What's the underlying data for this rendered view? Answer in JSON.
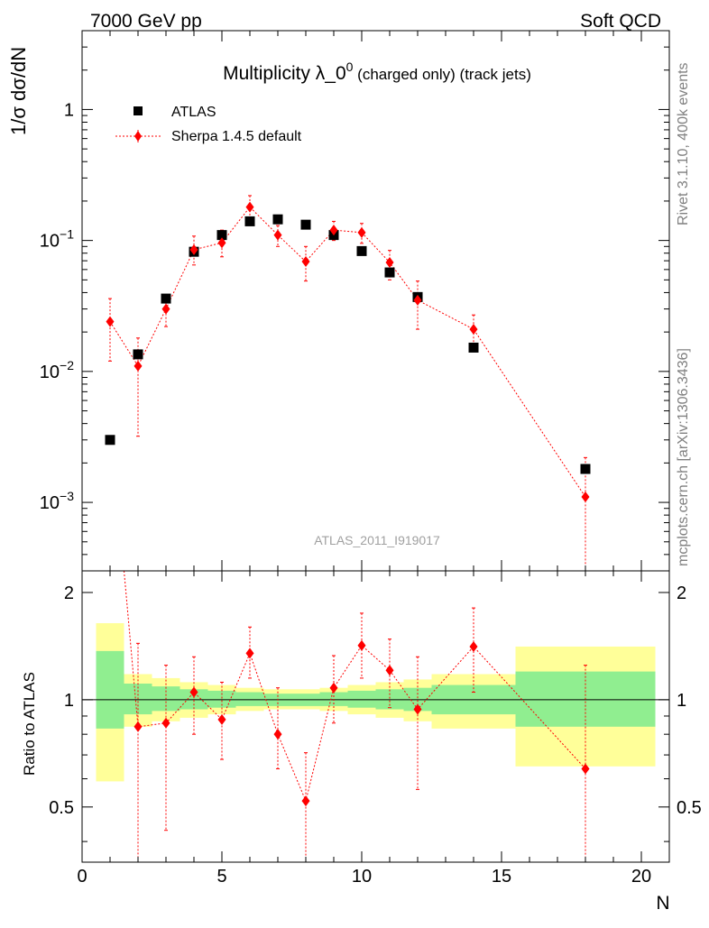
{
  "header": {
    "left": "7000 GeV pp",
    "right": "Soft QCD"
  },
  "side_labels": {
    "rivet": "Rivet 3.1.10,  400k events",
    "mcplots": "mcplots.cern.ch [arXiv:1306.3436]"
  },
  "chart_data": {
    "type": "scatter",
    "title_main": "Multiplicity λ_0",
    "title_sup": "0",
    "title_suffix": " (charged only) (track jets)",
    "ylabel": "1/σ dσ/dN",
    "ylabel_ratio": "Ratio to ATLAS",
    "xlabel": "N",
    "analysis_id": "ATLAS_2011_I919017",
    "xlim": [
      0,
      21
    ],
    "ylim_log": [
      0.0003,
      4
    ],
    "ratio_ylim": [
      0.35,
      2.3
    ],
    "y_ticks": [
      {
        "value": 1,
        "label": "1"
      },
      {
        "value": 0.1,
        "label": "10",
        "exp": "−1"
      },
      {
        "value": 0.01,
        "label": "10",
        "exp": "−2"
      },
      {
        "value": 0.001,
        "label": "10",
        "exp": "−3"
      }
    ],
    "ratio_ticks": [
      {
        "value": 0.5,
        "label": "0.5"
      },
      {
        "value": 1,
        "label": "1"
      },
      {
        "value": 2,
        "label": "2"
      }
    ],
    "x_ticks": [
      0,
      5,
      10,
      15,
      20
    ],
    "legend": [
      {
        "name": "ATLAS",
        "marker": "square",
        "color": "#000000"
      },
      {
        "name": "Sherpa 1.4.5 default",
        "marker": "diamond",
        "color": "#ff0000"
      }
    ],
    "atlas": {
      "name": "ATLAS",
      "x": [
        1,
        2,
        3,
        4,
        5,
        6,
        7,
        8,
        9,
        10,
        11,
        12,
        14,
        18
      ],
      "y": [
        0.003,
        0.0135,
        0.036,
        0.082,
        0.11,
        0.14,
        0.145,
        0.132,
        0.11,
        0.083,
        0.057,
        0.037,
        0.0152,
        0.0018
      ]
    },
    "sherpa": {
      "name": "Sherpa 1.4.5 default",
      "x": [
        1,
        2,
        3,
        4,
        5,
        6,
        7,
        8,
        9,
        10,
        11,
        12,
        14,
        18
      ],
      "y": [
        0.024,
        0.011,
        0.03,
        0.085,
        0.096,
        0.18,
        0.11,
        0.069,
        0.12,
        0.115,
        0.068,
        0.035,
        0.021,
        0.0011
      ],
      "y_lo": [
        0.012,
        0.0032,
        0.022,
        0.065,
        0.075,
        0.15,
        0.09,
        0.049,
        0.1,
        0.095,
        0.05,
        0.021,
        0.015,
        0.0002
      ],
      "y_hi": [
        0.036,
        0.018,
        0.038,
        0.108,
        0.12,
        0.22,
        0.13,
        0.09,
        0.14,
        0.135,
        0.084,
        0.049,
        0.027,
        0.0022
      ]
    },
    "ratio": {
      "x": [
        2,
        3,
        4,
        5,
        6,
        7,
        8,
        9,
        10,
        11,
        12,
        14,
        18
      ],
      "y": [
        0.84,
        0.86,
        1.05,
        0.88,
        1.35,
        0.8,
        0.52,
        1.08,
        1.42,
        1.21,
        0.94,
        1.41,
        0.64
      ],
      "y_lo": [
        0.3,
        0.43,
        0.8,
        0.68,
        1.15,
        0.64,
        0.35,
        0.86,
        1.15,
        0.95,
        0.56,
        1.05,
        0.3
      ],
      "y_hi": [
        1.44,
        1.25,
        1.32,
        1.12,
        1.6,
        1.08,
        0.71,
        1.33,
        1.75,
        1.48,
        1.32,
        1.81,
        1.25
      ],
      "first_y_hi": 2.3
    },
    "uncertainty_bands": [
      {
        "x0": 0.5,
        "x1": 1.5,
        "inner": [
          0.83,
          1.37
        ],
        "outer": [
          0.59,
          1.64
        ]
      },
      {
        "x0": 1.5,
        "x1": 2.5,
        "inner": [
          0.91,
          1.11
        ],
        "outer": [
          0.84,
          1.18
        ]
      },
      {
        "x0": 2.5,
        "x1": 3.5,
        "inner": [
          0.93,
          1.09
        ],
        "outer": [
          0.87,
          1.15
        ]
      },
      {
        "x0": 3.5,
        "x1": 4.5,
        "inner": [
          0.94,
          1.07
        ],
        "outer": [
          0.89,
          1.12
        ]
      },
      {
        "x0": 4.5,
        "x1": 5.5,
        "inner": [
          0.95,
          1.06
        ],
        "outer": [
          0.91,
          1.1
        ]
      },
      {
        "x0": 5.5,
        "x1": 6.5,
        "inner": [
          0.96,
          1.05
        ],
        "outer": [
          0.93,
          1.08
        ]
      },
      {
        "x0": 6.5,
        "x1": 7.5,
        "inner": [
          0.96,
          1.04
        ],
        "outer": [
          0.94,
          1.07
        ]
      },
      {
        "x0": 7.5,
        "x1": 8.5,
        "inner": [
          0.96,
          1.04
        ],
        "outer": [
          0.94,
          1.07
        ]
      },
      {
        "x0": 8.5,
        "x1": 9.5,
        "inner": [
          0.96,
          1.05
        ],
        "outer": [
          0.93,
          1.08
        ]
      },
      {
        "x0": 9.5,
        "x1": 10.5,
        "inner": [
          0.95,
          1.06
        ],
        "outer": [
          0.91,
          1.1
        ]
      },
      {
        "x0": 10.5,
        "x1": 11.5,
        "inner": [
          0.94,
          1.07
        ],
        "outer": [
          0.89,
          1.12
        ]
      },
      {
        "x0": 11.5,
        "x1": 12.5,
        "inner": [
          0.93,
          1.08
        ],
        "outer": [
          0.87,
          1.14
        ]
      },
      {
        "x0": 12.5,
        "x1": 15.5,
        "inner": [
          0.91,
          1.1
        ],
        "outer": [
          0.83,
          1.18
        ]
      },
      {
        "x0": 15.5,
        "x1": 20.5,
        "inner": [
          0.84,
          1.2
        ],
        "outer": [
          0.65,
          1.41
        ]
      }
    ],
    "colors": {
      "band_inner": "#90ee90",
      "band_outer": "#ffff99",
      "sherpa": "#ff0000",
      "atlas": "#000000"
    }
  }
}
